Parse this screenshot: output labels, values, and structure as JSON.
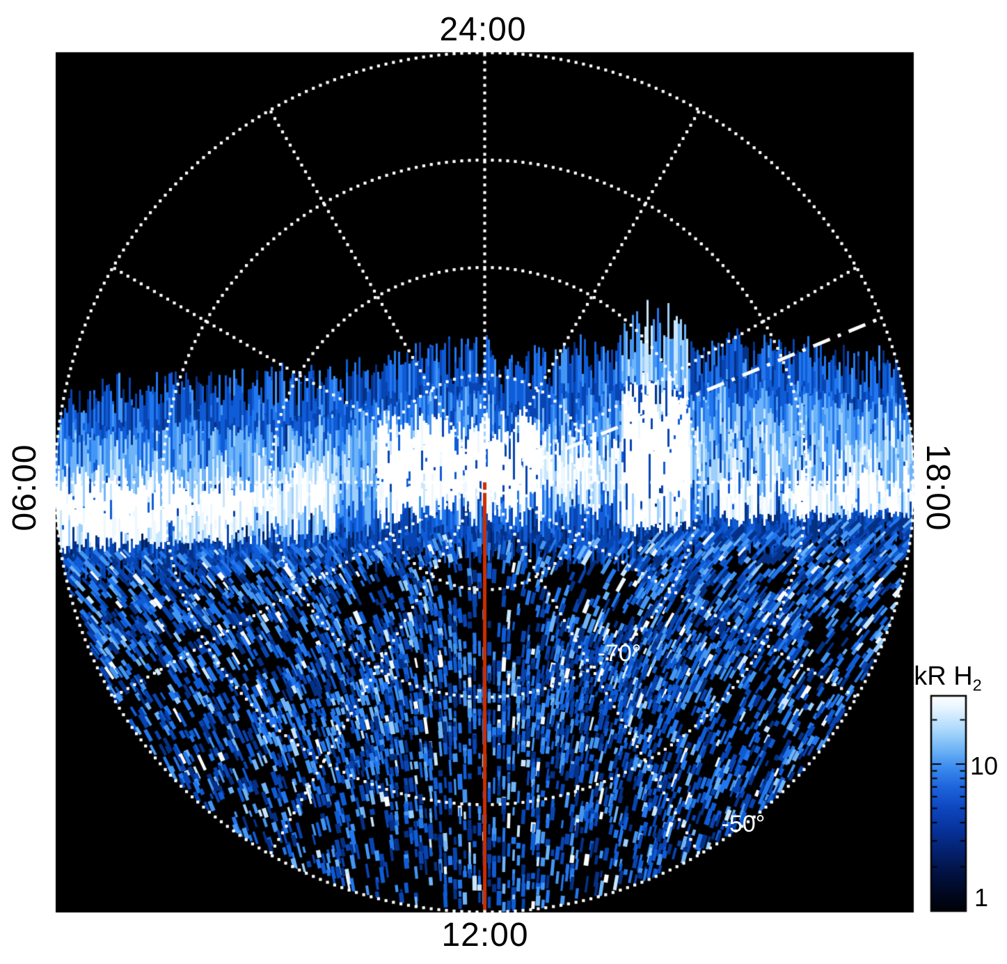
{
  "page": {
    "background": "#ffffff",
    "panel_background": "#000000"
  },
  "chart_data": {
    "type": "heatmap",
    "projection": "polar-southern-hemisphere-local-time",
    "units": "kR H2",
    "local_time_labels": [
      {
        "position": "top",
        "label": "24:00"
      },
      {
        "position": "bottom",
        "label": "12:00"
      },
      {
        "position": "left",
        "label": "06:00"
      },
      {
        "position": "right",
        "label": "18:00"
      }
    ],
    "spoke_interval_hours": 2,
    "grid_style": {
      "color": "#ffffff",
      "pattern": "dotted"
    },
    "latitude_grid": {
      "pole_latitude_deg": -90,
      "rim_latitude_deg": -50,
      "ring_interval_deg": 10,
      "rings_deg": [
        -80,
        -70,
        -60,
        -50
      ],
      "labeled_rings": [
        {
          "latitude_deg": -70,
          "label": "-70°"
        },
        {
          "latitude_deg": -50,
          "label": "-50°"
        }
      ]
    },
    "colorbar": {
      "title_main": "kR H",
      "title_sub": "2",
      "scale": "log",
      "min": 1,
      "max": 30,
      "tick_labels": [
        {
          "value": 10,
          "label": "10"
        },
        {
          "value": 1,
          "label": "1"
        }
      ],
      "minor_ticks": [
        2,
        3,
        4,
        5,
        6,
        7,
        8,
        9,
        20
      ],
      "gradient_top_to_bottom": [
        {
          "p": 0.0,
          "c": "#ffffff"
        },
        {
          "p": 0.05,
          "c": "#eaf6ff"
        },
        {
          "p": 0.15,
          "c": "#b0dcfc"
        },
        {
          "p": 0.25,
          "c": "#6fb4f6"
        },
        {
          "p": 0.33,
          "c": "#3d8df0"
        },
        {
          "p": 0.42,
          "c": "#1f66dd"
        },
        {
          "p": 0.52,
          "c": "#0e47c0"
        },
        {
          "p": 0.62,
          "c": "#07339c"
        },
        {
          "p": 0.72,
          "c": "#042270"
        },
        {
          "p": 0.82,
          "c": "#021244"
        },
        {
          "p": 0.92,
          "c": "#010820"
        },
        {
          "p": 1.0,
          "c": "#000208"
        }
      ]
    },
    "colormap_dark_to_bright": [
      "#010d2a",
      "#032057",
      "#053185",
      "#0845b2",
      "#0f5cd6",
      "#2277ee",
      "#4496f4",
      "#6fb4f8",
      "#9ccffb",
      "#c8e6fd",
      "#eef8ff",
      "#ffffff"
    ],
    "annotations": [
      {
        "name": "noon-meridian-line",
        "shape": "line",
        "style": "solid",
        "color": "#cc2e00",
        "from": "pole",
        "toward_local_time": "12:00"
      },
      {
        "name": "dash-dot-reference-line",
        "shape": "line",
        "style": "dash-dot",
        "color": "#ffffff",
        "from": "pole",
        "elevation_deg_above_dusk_axis": 22.5
      },
      {
        "name": "pole-marker",
        "shape": "open-circle",
        "color": "#ffffff"
      }
    ],
    "features": {
      "main_emission_band": {
        "description": "Bright horizontal band of H2 auroral/dayglow emission crossing the disk near its center; brightest near the dawn (06:00) limb, near disk center, around a very bright patch just duskward of the noon meridian, and along the dusk (18:00) side.",
        "approx_peak_kR": 30
      },
      "background_speckle": {
        "description": "Patchy faint emission of 1-10 kR filling the lower (dayside, 12:00) half of the disk; upper (nightside, 24:00) half is dark.",
        "approx_range_kR": [
          1,
          10
        ]
      }
    }
  }
}
